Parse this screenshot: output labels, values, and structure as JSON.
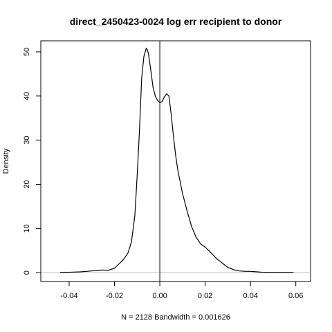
{
  "chart_data": {
    "type": "line",
    "title": "direct_2450423-0024 log err recipient to donor",
    "xlabel": "N = 2128   Bandwidth = 0.001626",
    "ylabel": "Density",
    "xlim": [
      -0.0525,
      0.0665
    ],
    "ylim": [
      -2.0,
      52.5
    ],
    "x_ticks": [
      -0.04,
      -0.02,
      0.0,
      0.02,
      0.04,
      0.06
    ],
    "x_tick_labels": [
      "-0.04",
      "-0.02",
      "0.00",
      "0.02",
      "0.04",
      "0.06"
    ],
    "y_ticks": [
      0,
      10,
      20,
      30,
      40,
      50
    ],
    "y_tick_labels": [
      "0",
      "10",
      "20",
      "30",
      "40",
      "50"
    ],
    "reference_lines": {
      "vertical_x": 0.0,
      "horizontal_y": 0.0
    },
    "grid": false,
    "series": [
      {
        "x": [
          -0.044,
          -0.04,
          -0.035,
          -0.03,
          -0.027,
          -0.025,
          -0.023,
          -0.02,
          -0.018,
          -0.016,
          -0.014,
          -0.0125,
          -0.011,
          -0.01,
          -0.009,
          -0.0085,
          -0.008,
          -0.007,
          -0.006,
          -0.0055,
          -0.005,
          -0.004,
          -0.003,
          -0.002,
          -0.001,
          0.0,
          0.001,
          0.002,
          0.003,
          0.004,
          0.005,
          0.006,
          0.007,
          0.008,
          0.009,
          0.01,
          0.012,
          0.014,
          0.016,
          0.018,
          0.02,
          0.022,
          0.025,
          0.028,
          0.03,
          0.033,
          0.035,
          0.038,
          0.04,
          0.043,
          0.045,
          0.05,
          0.055,
          0.059
        ],
        "y": [
          0.1,
          0.1,
          0.2,
          0.4,
          0.5,
          0.6,
          0.5,
          1.0,
          2.0,
          3.0,
          4.5,
          7.0,
          13.0,
          22.0,
          32.0,
          38.0,
          44.0,
          49.0,
          50.8,
          50.5,
          49.5,
          46.0,
          42.0,
          40.0,
          39.0,
          38.5,
          38.7,
          39.8,
          40.5,
          40.0,
          36.0,
          31.0,
          26.5,
          23.0,
          20.5,
          18.0,
          14.0,
          10.5,
          8.0,
          6.5,
          5.8,
          4.8,
          3.2,
          2.0,
          1.2,
          0.6,
          0.4,
          0.3,
          0.3,
          0.2,
          0.1,
          0.05,
          0.05,
          0.05
        ]
      }
    ]
  }
}
